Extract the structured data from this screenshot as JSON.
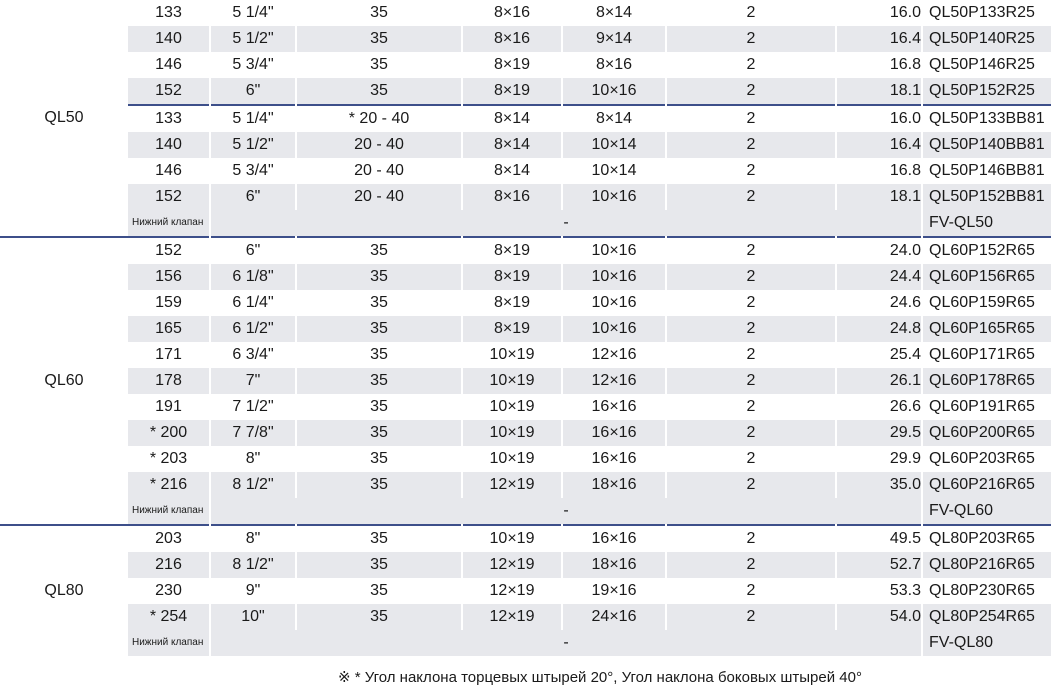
{
  "groups": [
    {
      "name": "QL50",
      "rows": [
        [
          "133",
          "5 1/4\"",
          "35",
          "8×16",
          "8×14",
          "2",
          "16.0",
          "QL50P133R25"
        ],
        [
          "140",
          "5 1/2\"",
          "35",
          "8×16",
          "9×14",
          "2",
          "16.4",
          "QL50P140R25"
        ],
        [
          "146",
          "5 3/4\"",
          "35",
          "8×19",
          "8×16",
          "2",
          "16.8",
          "QL50P146R25"
        ],
        [
          "152",
          "6\"",
          "35",
          "8×19",
          "10×16",
          "2",
          "18.1",
          "QL50P152R25"
        ],
        [
          "133",
          "5 1/4\"",
          "* 20 - 40",
          "8×14",
          "8×14",
          "2",
          "16.0",
          "QL50P133BB81"
        ],
        [
          "140",
          "5 1/2\"",
          "20 - 40",
          "8×14",
          "10×14",
          "2",
          "16.4",
          "QL50P140BB81"
        ],
        [
          "146",
          "5 3/4\"",
          "20 - 40",
          "8×14",
          "10×14",
          "2",
          "16.8",
          "QL50P146BB81"
        ],
        [
          "152",
          "6\"",
          "20 - 40",
          "8×16",
          "10×16",
          "2",
          "18.1",
          "QL50P152BB81"
        ]
      ],
      "valve": {
        "label": "Нижний клапан",
        "dash": "-",
        "model": "FV-QL50"
      }
    },
    {
      "name": "QL60",
      "rows": [
        [
          "152",
          "6\"",
          "35",
          "8×19",
          "10×16",
          "2",
          "24.0",
          "QL60P152R65"
        ],
        [
          "156",
          "6 1/8\"",
          "35",
          "8×19",
          "10×16",
          "2",
          "24.4",
          "QL60P156R65"
        ],
        [
          "159",
          "6 1/4\"",
          "35",
          "8×19",
          "10×16",
          "2",
          "24.6",
          "QL60P159R65"
        ],
        [
          "165",
          "6 1/2\"",
          "35",
          "8×19",
          "10×16",
          "2",
          "24.8",
          "QL60P165R65"
        ],
        [
          "171",
          "6 3/4\"",
          "35",
          "10×19",
          "12×16",
          "2",
          "25.4",
          "QL60P171R65"
        ],
        [
          "178",
          "7\"",
          "35",
          "10×19",
          "12×16",
          "2",
          "26.1",
          "QL60P178R65"
        ],
        [
          "191",
          "7 1/2\"",
          "35",
          "10×19",
          "16×16",
          "2",
          "26.6",
          "QL60P191R65"
        ],
        [
          "* 200",
          "7 7/8\"",
          "35",
          "10×19",
          "16×16",
          "2",
          "29.5",
          "QL60P200R65"
        ],
        [
          "* 203",
          "8\"",
          "35",
          "10×19",
          "16×16",
          "2",
          "29.9",
          "QL60P203R65"
        ],
        [
          "* 216",
          "8 1/2\"",
          "35",
          "12×19",
          "18×16",
          "2",
          "35.0",
          "QL60P216R65"
        ]
      ],
      "valve": {
        "label": "Нижний клапан",
        "dash": "-",
        "model": "FV-QL60"
      }
    },
    {
      "name": "QL80",
      "rows": [
        [
          "203",
          "8\"",
          "35",
          "10×19",
          "16×16",
          "2",
          "49.5",
          "QL80P203R65"
        ],
        [
          "216",
          "8 1/2\"",
          "35",
          "12×19",
          "18×16",
          "2",
          "52.7",
          "QL80P216R65"
        ],
        [
          "230",
          "9\"",
          "35",
          "12×19",
          "19×16",
          "2",
          "53.3",
          "QL80P230R65"
        ],
        [
          "* 254",
          "10\"",
          "35",
          "12×19",
          "24×16",
          "2",
          "54.0",
          "QL80P254R65"
        ]
      ],
      "valve": {
        "label": "Нижний клапан",
        "dash": "-",
        "model": "FV-QL80"
      }
    }
  ],
  "footnote": "※ * Угол наклона торцевых штырей 20°, Угол наклона  боковых штырей 40°"
}
